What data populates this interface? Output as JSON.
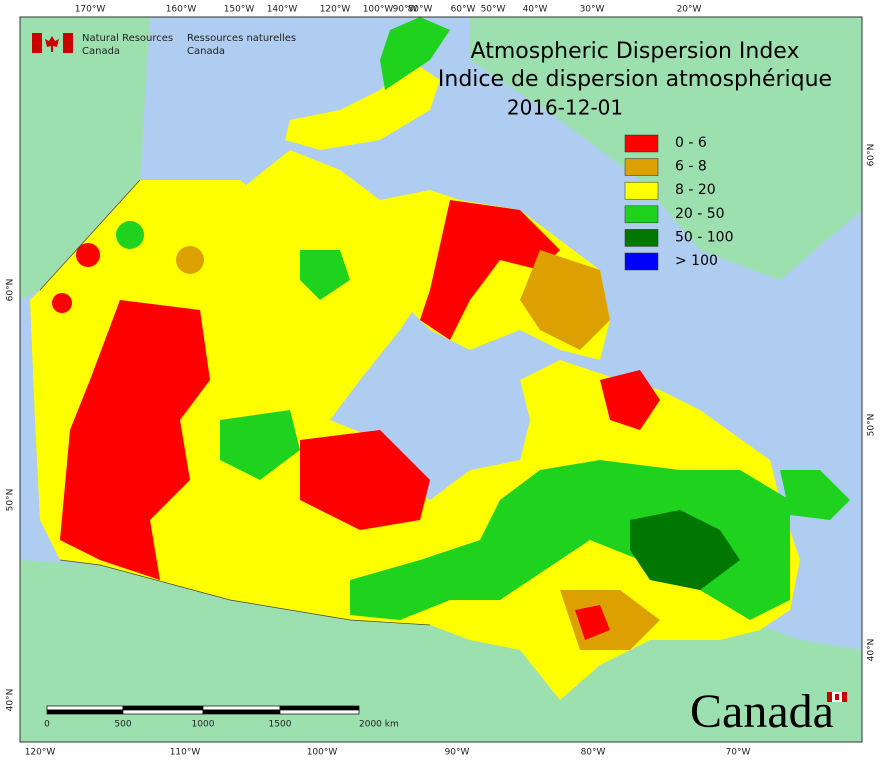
{
  "header": {
    "agency_en": [
      "Natural Resources",
      "Canada"
    ],
    "agency_fr": [
      "Ressources naturelles",
      "Canada"
    ]
  },
  "title": {
    "line_en": "Atmospheric Dispersion Index",
    "line_fr": "Indice de dispersion atmosphérique",
    "date": "2016-12-01"
  },
  "legend": {
    "items": [
      {
        "label": "0 - 6",
        "color": "#ff0000"
      },
      {
        "label": "6 - 8",
        "color": "#dca000"
      },
      {
        "label": "8 - 20",
        "color": "#ffff00"
      },
      {
        "label": "20 - 50",
        "color": "#1ed21e"
      },
      {
        "label": "50 - 100",
        "color": "#007800"
      },
      {
        "label": "> 100",
        "color": "#0000ff"
      }
    ]
  },
  "graticule": {
    "top": [
      "170°W",
      "160°W",
      "150°W",
      "140°W",
      "120°W",
      "100°W",
      "90°W",
      "80°W",
      "60°W",
      "50°W",
      "40°W",
      "30°W",
      "20°W"
    ],
    "bottom": [
      "120°W",
      "110°W",
      "100°W",
      "90°W",
      "80°W",
      "70°W"
    ],
    "left": [
      "60°N",
      "50°N",
      "40°N"
    ],
    "right": [
      "60°N",
      "50°N",
      "40°N"
    ]
  },
  "scale": {
    "labels": [
      "0",
      "500",
      "1000",
      "1500",
      "2000 km"
    ]
  },
  "wordmark": "Canada"
}
